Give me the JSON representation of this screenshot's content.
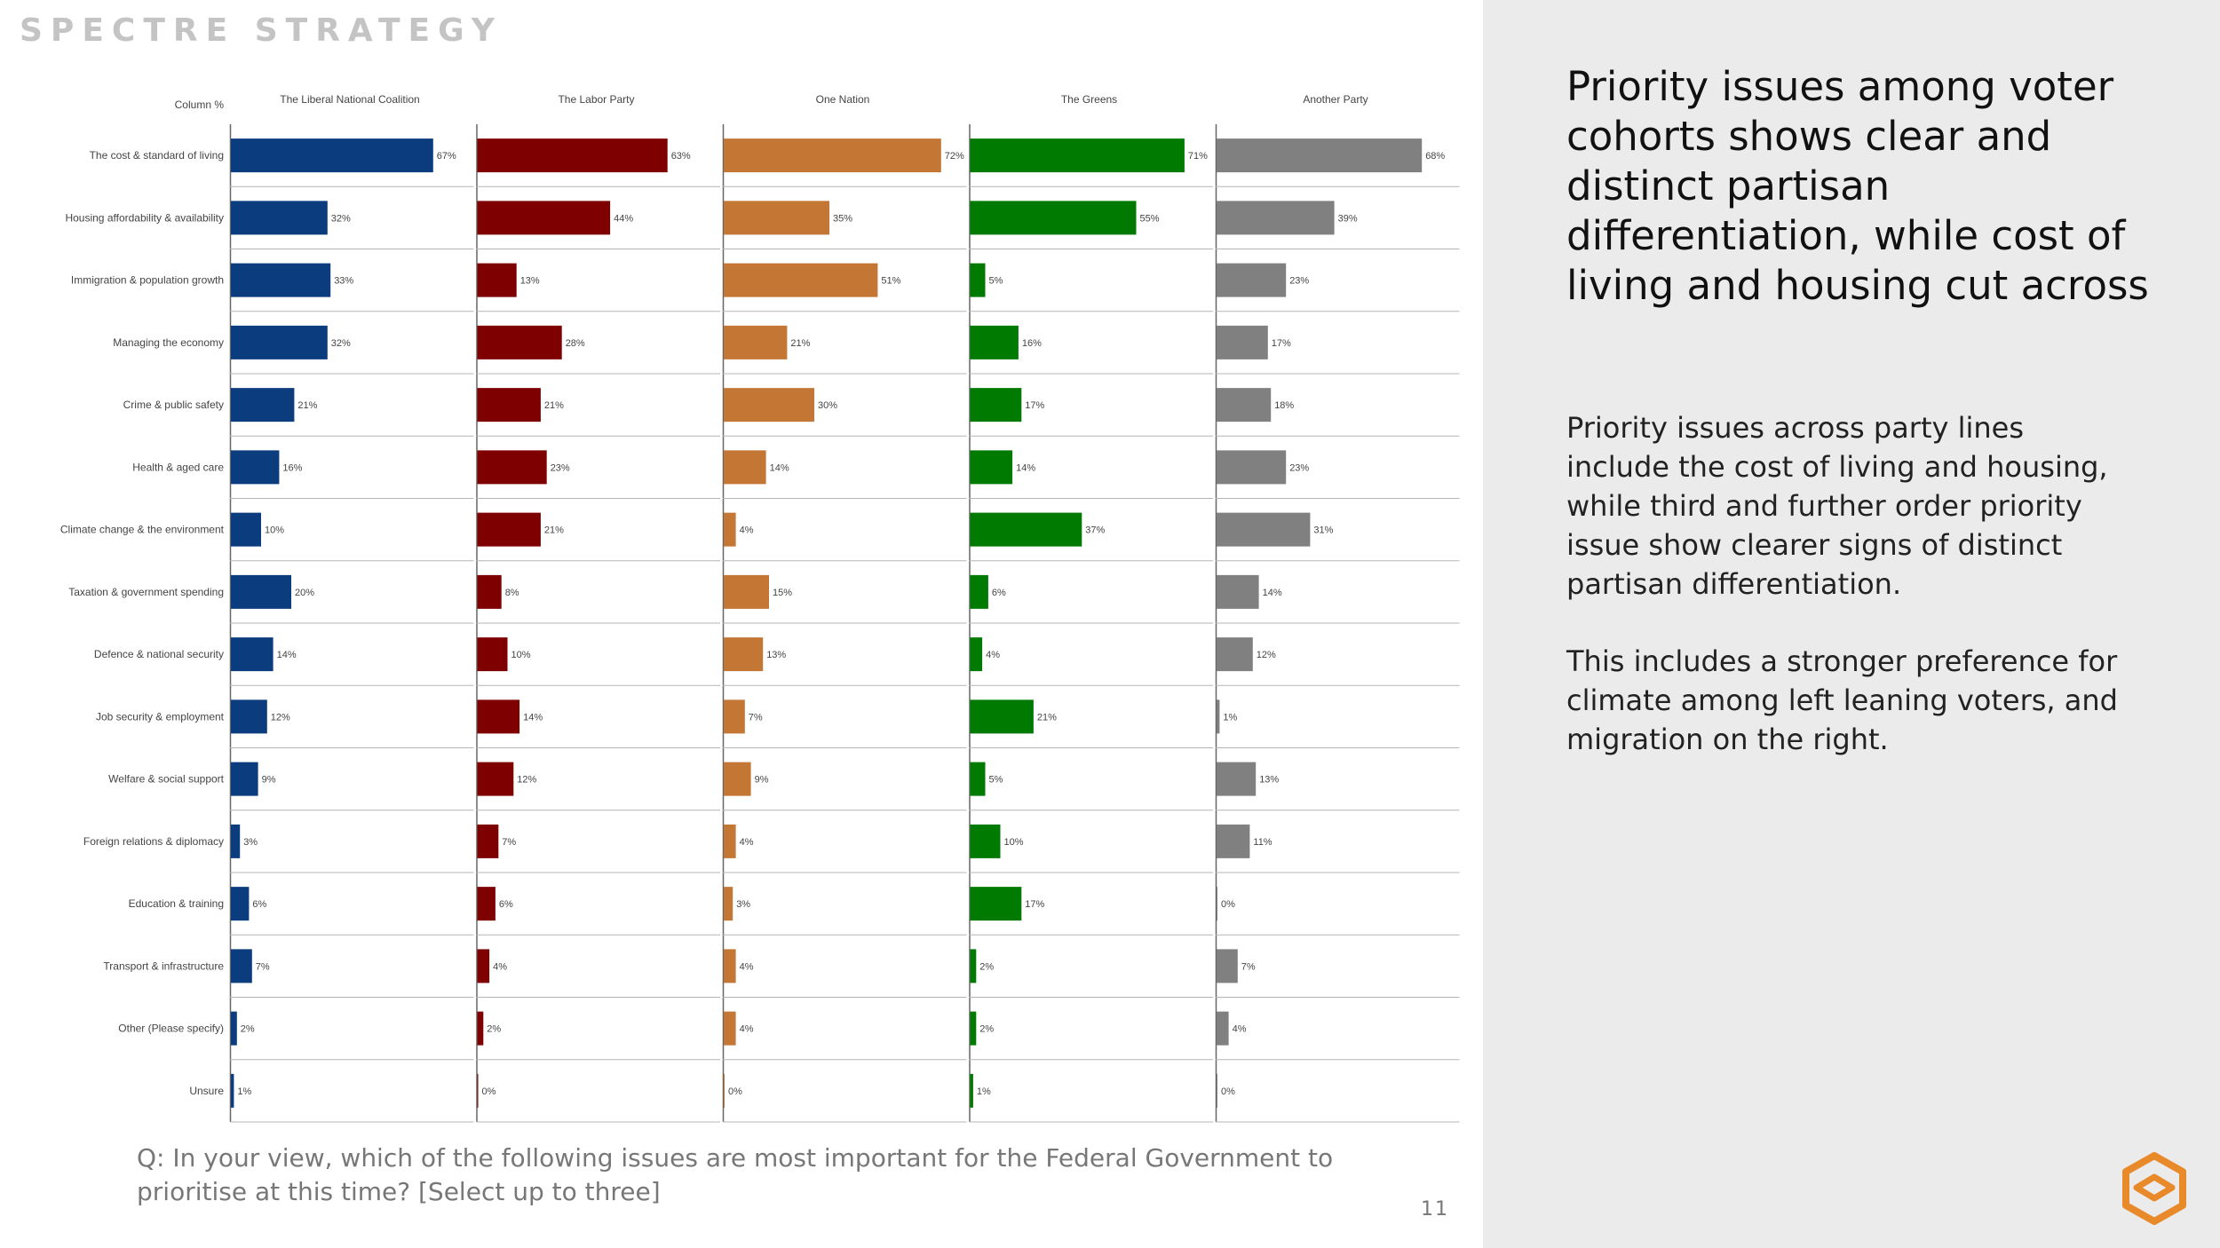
{
  "brand": "SPECTRE STRATEGY",
  "headline": "Priority issues among voter cohorts shows clear and distinct partisan differentiation, while cost of living and housing cut across",
  "body_paragraphs": [
    "Priority issues across party lines include the cost of living and housing, while third and further order priority issue show clearer signs of distinct partisan differentiation.",
    "This includes a stronger preference for climate among left leaning voters, and migration on the right."
  ],
  "question": "Q: In your view, which of the following issues are most important for the Federal Government to prioritise at this time? [Select up to three]",
  "page_number": "11",
  "chart_data": {
    "type": "bar",
    "orientation": "horizontal",
    "row_header": "Column %",
    "value_suffix": "%",
    "grid": false,
    "categories": [
      "The cost & standard of living",
      "Housing affordability & availability",
      "Immigration & population growth",
      "Managing the economy",
      "Crime & public safety",
      "Health & aged care",
      "Climate change & the environment",
      "Taxation & government spending",
      "Defence & national security",
      "Job security & employment",
      "Welfare & social support",
      "Foreign relations & diplomacy",
      "Education & training",
      "Transport & infrastructure",
      "Other (Please specify)",
      "Unsure"
    ],
    "series": [
      {
        "name": "The Liberal National Coalition",
        "color": "#0b3c7d",
        "values": [
          67,
          32,
          33,
          32,
          21,
          16,
          10,
          20,
          14,
          12,
          9,
          3,
          6,
          7,
          2,
          1
        ]
      },
      {
        "name": "The Labor Party",
        "color": "#7f0000",
        "values": [
          63,
          44,
          13,
          28,
          21,
          23,
          21,
          8,
          10,
          14,
          12,
          7,
          6,
          4,
          2,
          0
        ]
      },
      {
        "name": "One Nation",
        "color": "#c47634",
        "values": [
          72,
          35,
          51,
          21,
          30,
          14,
          4,
          15,
          13,
          7,
          9,
          4,
          3,
          4,
          4,
          0
        ]
      },
      {
        "name": "The Greens",
        "color": "#007a00",
        "values": [
          71,
          55,
          5,
          16,
          17,
          14,
          37,
          6,
          4,
          21,
          5,
          10,
          17,
          2,
          2,
          1
        ]
      },
      {
        "name": "Another Party",
        "color": "#808080",
        "values": [
          68,
          39,
          23,
          17,
          18,
          23,
          31,
          14,
          12,
          1,
          13,
          11,
          0,
          7,
          4,
          0
        ]
      }
    ]
  }
}
